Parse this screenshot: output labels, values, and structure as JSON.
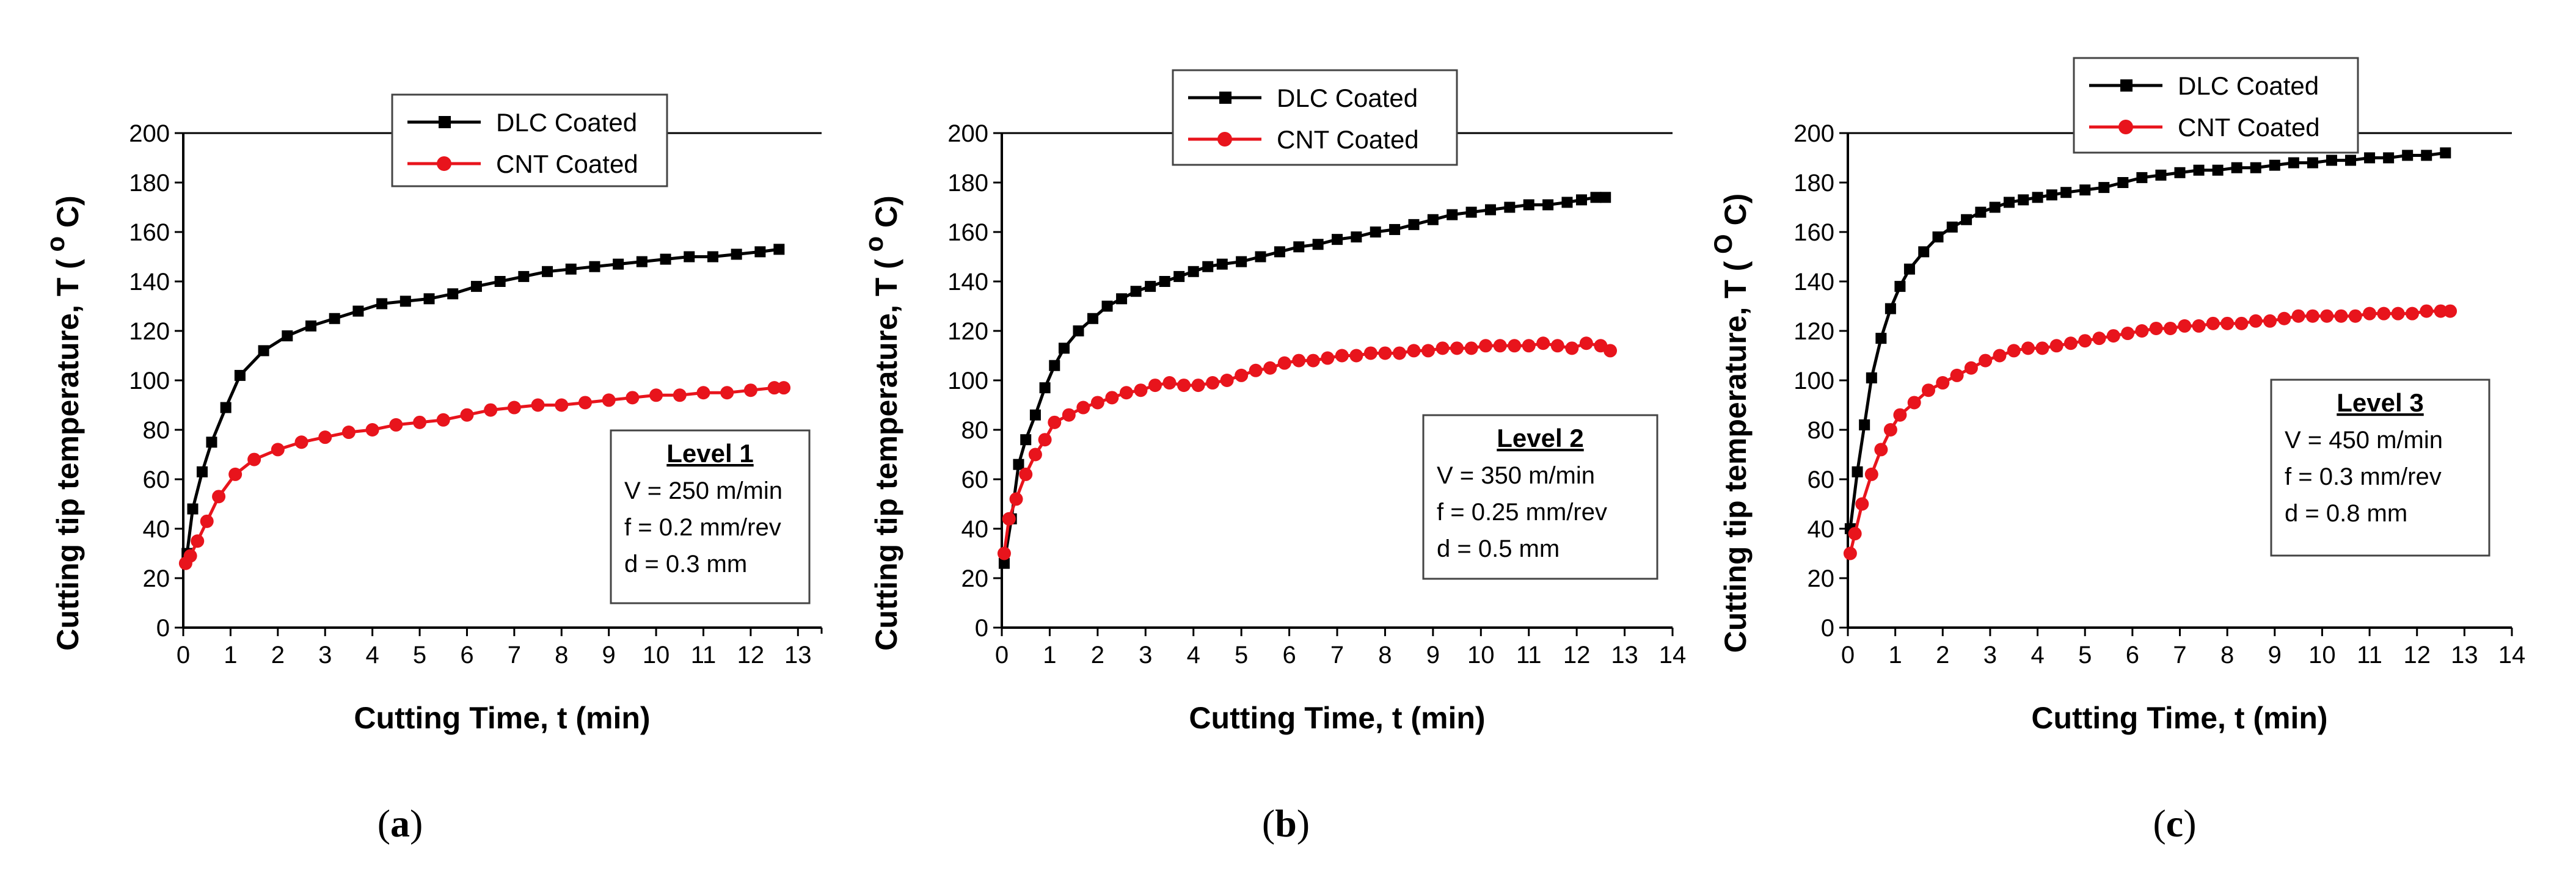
{
  "colors": {
    "dlc": "#000000",
    "cnt": "#e8141c",
    "axis": "#000000"
  },
  "chart_data": [
    {
      "type": "line",
      "caption": "a",
      "xlabel": "Cutting Time, t (min)",
      "ylabel": "Cutting tip temperature, T (",
      "ylabel_unit": "C",
      "ylabel_close": ")",
      "ylabel_degree": "o",
      "xlim": [
        0,
        13.5
      ],
      "ylim": [
        0,
        200
      ],
      "xticks": [
        "0",
        "1",
        "2",
        "3",
        "4",
        "5",
        "6",
        "7",
        "8",
        "9",
        "10",
        "11",
        "12",
        "13"
      ],
      "yticks": [
        "0",
        "20",
        "40",
        "60",
        "80",
        "100",
        "120",
        "140",
        "160",
        "180",
        "200"
      ],
      "legend": [
        "DLC Coated",
        "CNT Coated"
      ],
      "info": {
        "title": "Level 1",
        "lines": [
          "V = 250 m/min",
          "f = 0.2 mm/rev",
          "d = 0.3 mm"
        ]
      },
      "series": [
        {
          "name": "DLC Coated",
          "marker": "square",
          "x": [
            0.08,
            0.2,
            0.4,
            0.6,
            0.9,
            1.2,
            1.7,
            2.2,
            2.7,
            3.2,
            3.7,
            4.2,
            4.7,
            5.2,
            5.7,
            6.2,
            6.7,
            7.2,
            7.7,
            8.2,
            8.7,
            9.2,
            9.7,
            10.2,
            10.7,
            11.2,
            11.7,
            12.2,
            12.6
          ],
          "y": [
            30,
            48,
            63,
            75,
            89,
            102,
            112,
            118,
            122,
            125,
            128,
            131,
            132,
            133,
            135,
            138,
            140,
            142,
            144,
            145,
            146,
            147,
            148,
            149,
            150,
            150,
            151,
            152,
            153
          ]
        },
        {
          "name": "CNT Coated",
          "marker": "circle",
          "x": [
            0.05,
            0.15,
            0.3,
            0.5,
            0.75,
            1.1,
            1.5,
            2.0,
            2.5,
            3.0,
            3.5,
            4.0,
            4.5,
            5.0,
            5.5,
            6.0,
            6.5,
            7.0,
            7.5,
            8.0,
            8.5,
            9.0,
            9.5,
            10.0,
            10.5,
            11.0,
            11.5,
            12.0,
            12.5,
            12.7
          ],
          "y": [
            26,
            29,
            35,
            43,
            53,
            62,
            68,
            72,
            75,
            77,
            79,
            80,
            82,
            83,
            84,
            86,
            88,
            89,
            90,
            90,
            91,
            92,
            93,
            94,
            94,
            95,
            95,
            96,
            97,
            97
          ]
        }
      ]
    },
    {
      "type": "line",
      "caption": "b",
      "xlabel": "Cutting Time, t (min)",
      "ylabel": "Cutting tip temperature, T (",
      "ylabel_unit": "C",
      "ylabel_close": ")",
      "ylabel_degree": "o",
      "xlim": [
        0,
        14
      ],
      "ylim": [
        0,
        200
      ],
      "xticks": [
        "0",
        "1",
        "2",
        "3",
        "4",
        "5",
        "6",
        "7",
        "8",
        "9",
        "10",
        "11",
        "12",
        "13",
        "14"
      ],
      "yticks": [
        "0",
        "20",
        "40",
        "60",
        "80",
        "100",
        "120",
        "140",
        "160",
        "180",
        "200"
      ],
      "legend": [
        "DLC Coated",
        "CNT Coated"
      ],
      "info": {
        "title": "Level 2",
        "lines": [
          "V = 350 m/min",
          "f = 0.25 mm/rev",
          "d = 0.5 mm"
        ]
      },
      "series": [
        {
          "name": "DLC Coated",
          "marker": "square",
          "x": [
            0.05,
            0.2,
            0.35,
            0.5,
            0.7,
            0.9,
            1.1,
            1.3,
            1.6,
            1.9,
            2.2,
            2.5,
            2.8,
            3.1,
            3.4,
            3.7,
            4.0,
            4.3,
            4.6,
            5.0,
            5.4,
            5.8,
            6.2,
            6.6,
            7.0,
            7.4,
            7.8,
            8.2,
            8.6,
            9.0,
            9.4,
            9.8,
            10.2,
            10.6,
            11.0,
            11.4,
            11.8,
            12.1,
            12.4,
            12.6
          ],
          "y": [
            26,
            44,
            66,
            76,
            86,
            97,
            106,
            113,
            120,
            125,
            130,
            133,
            136,
            138,
            140,
            142,
            144,
            146,
            147,
            148,
            150,
            152,
            154,
            155,
            157,
            158,
            160,
            161,
            163,
            165,
            167,
            168,
            169,
            170,
            171,
            171,
            172,
            173,
            174,
            174
          ]
        },
        {
          "name": "CNT Coated",
          "marker": "circle",
          "x": [
            0.05,
            0.15,
            0.3,
            0.5,
            0.7,
            0.9,
            1.1,
            1.4,
            1.7,
            2.0,
            2.3,
            2.6,
            2.9,
            3.2,
            3.5,
            3.8,
            4.1,
            4.4,
            4.7,
            5.0,
            5.3,
            5.6,
            5.9,
            6.2,
            6.5,
            6.8,
            7.1,
            7.4,
            7.7,
            8.0,
            8.3,
            8.6,
            8.9,
            9.2,
            9.5,
            9.8,
            10.1,
            10.4,
            10.7,
            11.0,
            11.3,
            11.6,
            11.9,
            12.2,
            12.5,
            12.7
          ],
          "y": [
            30,
            44,
            52,
            62,
            70,
            76,
            83,
            86,
            89,
            91,
            93,
            95,
            96,
            98,
            99,
            98,
            98,
            99,
            100,
            102,
            104,
            105,
            107,
            108,
            108,
            109,
            110,
            110,
            111,
            111,
            111,
            112,
            112,
            113,
            113,
            113,
            114,
            114,
            114,
            114,
            115,
            114,
            113,
            115,
            114,
            112
          ]
        }
      ]
    },
    {
      "type": "line",
      "caption": "c",
      "xlabel": "Cutting Time, t (min)",
      "ylabel": "Cutting tip temperature, T (",
      "ylabel_unit": "C",
      "ylabel_close": ")",
      "ylabel_degree": "O",
      "xlim": [
        0,
        14
      ],
      "ylim": [
        0,
        200
      ],
      "xticks": [
        "0",
        "1",
        "2",
        "3",
        "4",
        "5",
        "6",
        "7",
        "8",
        "9",
        "10",
        "11",
        "12",
        "13",
        "14"
      ],
      "yticks": [
        "0",
        "20",
        "40",
        "60",
        "80",
        "100",
        "120",
        "140",
        "160",
        "180",
        "200"
      ],
      "legend": [
        "DLC Coated",
        "CNT Coated"
      ],
      "info": {
        "title": "Level 3",
        "lines": [
          "V = 450 m/min",
          "f = 0.3 mm/rev",
          "d = 0.8 mm"
        ]
      },
      "series": [
        {
          "name": "DLC Coated",
          "marker": "square",
          "x": [
            0.05,
            0.2,
            0.35,
            0.5,
            0.7,
            0.9,
            1.1,
            1.3,
            1.6,
            1.9,
            2.2,
            2.5,
            2.8,
            3.1,
            3.4,
            3.7,
            4.0,
            4.3,
            4.6,
            5.0,
            5.4,
            5.8,
            6.2,
            6.6,
            7.0,
            7.4,
            7.8,
            8.2,
            8.6,
            9.0,
            9.4,
            9.8,
            10.2,
            10.6,
            11.0,
            11.4,
            11.8,
            12.2,
            12.6
          ],
          "y": [
            40,
            63,
            82,
            101,
            117,
            129,
            138,
            145,
            152,
            158,
            162,
            165,
            168,
            170,
            172,
            173,
            174,
            175,
            176,
            177,
            178,
            180,
            182,
            183,
            184,
            185,
            185,
            186,
            186,
            187,
            188,
            188,
            189,
            189,
            190,
            190,
            191,
            191,
            192
          ]
        },
        {
          "name": "CNT Coated",
          "marker": "circle",
          "x": [
            0.05,
            0.15,
            0.3,
            0.5,
            0.7,
            0.9,
            1.1,
            1.4,
            1.7,
            2.0,
            2.3,
            2.6,
            2.9,
            3.2,
            3.5,
            3.8,
            4.1,
            4.4,
            4.7,
            5.0,
            5.3,
            5.6,
            5.9,
            6.2,
            6.5,
            6.8,
            7.1,
            7.4,
            7.7,
            8.0,
            8.3,
            8.6,
            8.9,
            9.2,
            9.5,
            9.8,
            10.1,
            10.4,
            10.7,
            11.0,
            11.3,
            11.6,
            11.9,
            12.2,
            12.5,
            12.7
          ],
          "y": [
            30,
            38,
            50,
            62,
            72,
            80,
            86,
            91,
            96,
            99,
            102,
            105,
            108,
            110,
            112,
            113,
            113,
            114,
            115,
            116,
            117,
            118,
            119,
            120,
            121,
            121,
            122,
            122,
            123,
            123,
            123,
            124,
            124,
            125,
            126,
            126,
            126,
            126,
            126,
            127,
            127,
            127,
            127,
            128,
            128,
            128
          ]
        }
      ]
    }
  ]
}
